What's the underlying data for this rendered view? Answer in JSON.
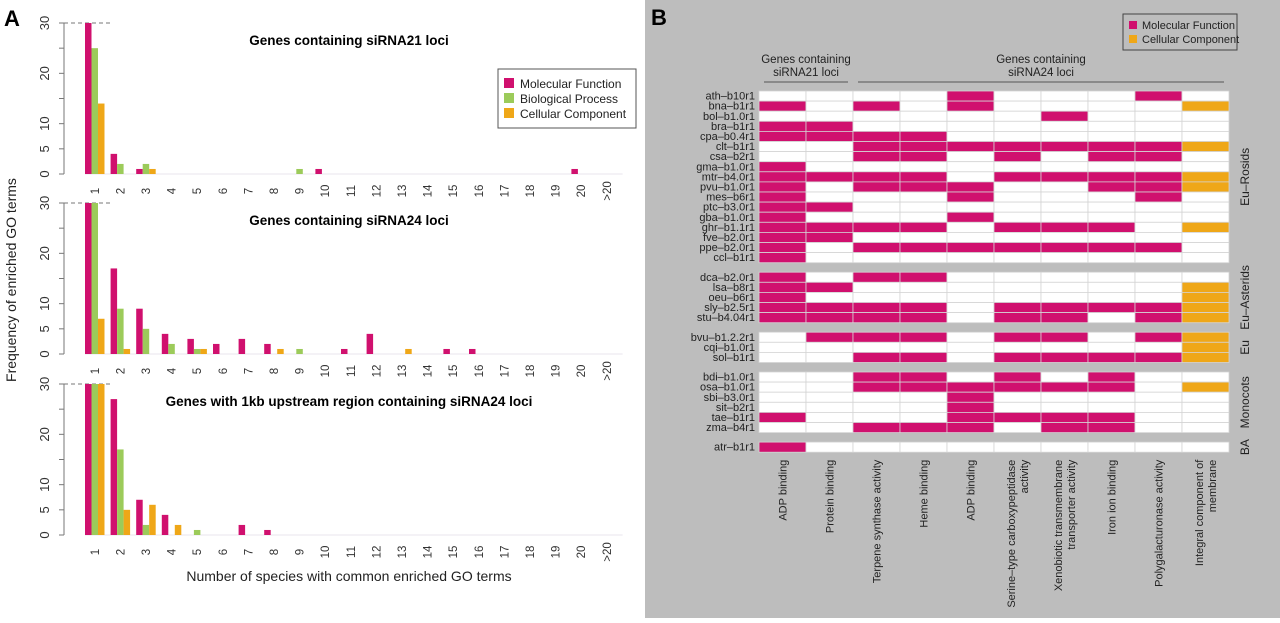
{
  "figure": {
    "panel_a_letter": "A",
    "panel_b_letter": "B"
  },
  "colors": {
    "molecular_function": "#d0106e",
    "biological_process": "#9ccb5a",
    "cellular_component": "#efa718",
    "heatmap_empty": "#ffffff",
    "panel_b_background": "#bdbdbd"
  },
  "chart_data": [
    {
      "type": "bar",
      "title": "Genes containing siRNA21 loci",
      "xlabel": "Number of species with common enriched GO terms",
      "ylabel": "Frequency of enriched GO terms",
      "ylim": [
        0,
        30
      ],
      "yticks": [
        "0",
        "5",
        "10",
        "20",
        "30"
      ],
      "grid": false,
      "reference_line": 30,
      "categories": [
        "1",
        "2",
        "3",
        "4",
        "5",
        "6",
        "7",
        "8",
        "9",
        "10",
        "11",
        "12",
        "13",
        "14",
        "15",
        "16",
        "17",
        "18",
        "19",
        "20",
        ">20"
      ],
      "legend": {
        "placement": "top-right",
        "entries": [
          "Molecular Function",
          "Biological Process",
          "Cellular Component"
        ]
      },
      "series": [
        {
          "name": "Molecular Function",
          "values": [
            30,
            4,
            1,
            0,
            0,
            0,
            0,
            0,
            0,
            1,
            0,
            0,
            0,
            0,
            0,
            0,
            0,
            0,
            0,
            1,
            0
          ]
        },
        {
          "name": "Biological Process",
          "values": [
            25,
            2,
            2,
            0,
            0,
            0,
            0,
            0,
            1,
            0,
            0,
            0,
            0,
            0,
            0,
            0,
            0,
            0,
            0,
            0,
            0
          ]
        },
        {
          "name": "Cellular Component",
          "values": [
            14,
            0,
            1,
            0,
            0,
            0,
            0,
            0,
            0,
            0,
            0,
            0,
            0,
            0,
            0,
            0,
            0,
            0,
            0,
            0,
            0
          ]
        }
      ]
    },
    {
      "type": "bar",
      "title": "Genes containing siRNA24 loci",
      "ylim": [
        0,
        30
      ],
      "yticks": [
        "0",
        "5",
        "10",
        "20",
        "30"
      ],
      "reference_line": 30,
      "categories": [
        "1",
        "2",
        "3",
        "4",
        "5",
        "6",
        "7",
        "8",
        "9",
        "10",
        "11",
        "12",
        "13",
        "14",
        "15",
        "16",
        "17",
        "18",
        "19",
        "20",
        ">20"
      ],
      "series": [
        {
          "name": "Molecular Function",
          "values": [
            30,
            17,
            9,
            4,
            3,
            2,
            3,
            2,
            0,
            0,
            1,
            4,
            0,
            0,
            1,
            1,
            0,
            0,
            0,
            0,
            0
          ]
        },
        {
          "name": "Biological Process",
          "values": [
            30,
            9,
            5,
            2,
            1,
            0,
            0,
            0,
            1,
            0,
            0,
            0,
            0,
            0,
            0,
            0,
            0,
            0,
            0,
            0,
            0
          ]
        },
        {
          "name": "Cellular Component",
          "values": [
            7,
            1,
            0,
            0,
            1,
            0,
            0,
            1,
            0,
            0,
            0,
            0,
            1,
            0,
            0,
            0,
            0,
            0,
            0,
            0,
            0
          ]
        }
      ]
    },
    {
      "type": "bar",
      "title": "Genes with 1kb upstream region containing siRNA24 loci",
      "ylim": [
        0,
        30
      ],
      "yticks": [
        "0",
        "5",
        "10",
        "20",
        "30"
      ],
      "reference_line": 30,
      "categories": [
        "1",
        "2",
        "3",
        "4",
        "5",
        "6",
        "7",
        "8",
        "9",
        "10",
        "11",
        "12",
        "13",
        "14",
        "15",
        "16",
        "17",
        "18",
        "19",
        "20",
        ">20"
      ],
      "series": [
        {
          "name": "Molecular Function",
          "values": [
            30,
            27,
            7,
            4,
            0,
            0,
            2,
            1,
            0,
            0,
            0,
            0,
            0,
            0,
            0,
            0,
            0,
            0,
            0,
            0,
            0
          ]
        },
        {
          "name": "Biological Process",
          "values": [
            30,
            17,
            2,
            0,
            1,
            0,
            0,
            0,
            0,
            0,
            0,
            0,
            0,
            0,
            0,
            0,
            0,
            0,
            0,
            0,
            0
          ]
        },
        {
          "name": "Cellular Component",
          "values": [
            30,
            5,
            6,
            2,
            0,
            0,
            0,
            0,
            0,
            0,
            0,
            0,
            0,
            0,
            0,
            0,
            0,
            0,
            0,
            0,
            0
          ]
        }
      ]
    },
    {
      "type": "heatmap",
      "legend": {
        "placement": "top-right",
        "entries": [
          "Molecular Function",
          "Cellular Component"
        ]
      },
      "column_groups": [
        {
          "label_lines": [
            "Genes containing",
            "siRNA21 loci"
          ],
          "columns": [
            0,
            1
          ]
        },
        {
          "label_lines": [
            "Genes containing",
            "siRNA24 loci"
          ],
          "columns": [
            2,
            9
          ]
        }
      ],
      "columns": [
        {
          "lines": [
            "ADP binding"
          ]
        },
        {
          "lines": [
            "Protein binding"
          ]
        },
        {
          "lines": [
            "Terpene synthase activity"
          ]
        },
        {
          "lines": [
            "Heme binding"
          ]
        },
        {
          "lines": [
            "ADP binding"
          ]
        },
        {
          "lines": [
            "Serine–type carboxypeptidase",
            "activity"
          ]
        },
        {
          "lines": [
            "Xenobiotic transmembrane",
            "transporter activity"
          ]
        },
        {
          "lines": [
            "Iron ion binding"
          ]
        },
        {
          "lines": [
            "Polygalacturonase activity"
          ]
        },
        {
          "lines": [
            "Integral component of",
            "membrane"
          ]
        }
      ],
      "value_legend": {
        "0": "none",
        "1": "Molecular Function",
        "2": "Cellular Component"
      },
      "groups": [
        {
          "name": "Eu–Rosids",
          "rows": [
            {
              "label": "ath–b10r1",
              "values": [
                0,
                0,
                0,
                0,
                1,
                0,
                0,
                0,
                1,
                0
              ]
            },
            {
              "label": "bna–b1r1",
              "values": [
                1,
                0,
                1,
                0,
                1,
                0,
                0,
                0,
                0,
                2
              ]
            },
            {
              "label": "bol–b1.0r1",
              "values": [
                0,
                0,
                0,
                0,
                0,
                0,
                1,
                0,
                0,
                0
              ]
            },
            {
              "label": "bra–b1r1",
              "values": [
                1,
                1,
                0,
                0,
                0,
                0,
                0,
                0,
                0,
                0
              ]
            },
            {
              "label": "cpa–b0.4r1",
              "values": [
                1,
                1,
                1,
                1,
                0,
                0,
                0,
                0,
                0,
                0
              ]
            },
            {
              "label": "clt–b1r1",
              "values": [
                0,
                0,
                1,
                1,
                1,
                1,
                1,
                1,
                1,
                2
              ]
            },
            {
              "label": "csa–b2r1",
              "values": [
                0,
                0,
                1,
                1,
                0,
                1,
                0,
                1,
                1,
                0
              ]
            },
            {
              "label": "gma–b1.0r1",
              "values": [
                1,
                0,
                0,
                0,
                0,
                0,
                0,
                0,
                0,
                0
              ]
            },
            {
              "label": "mtr–b4.0r1",
              "values": [
                1,
                1,
                1,
                1,
                0,
                1,
                1,
                1,
                1,
                2
              ]
            },
            {
              "label": "pvu–b1.0r1",
              "values": [
                1,
                0,
                1,
                1,
                1,
                0,
                0,
                1,
                1,
                2
              ]
            },
            {
              "label": "mes–b6r1",
              "values": [
                1,
                0,
                0,
                0,
                1,
                0,
                0,
                0,
                1,
                0
              ]
            },
            {
              "label": "ptc–b3.0r1",
              "values": [
                1,
                1,
                0,
                0,
                0,
                0,
                0,
                0,
                0,
                0
              ]
            },
            {
              "label": "gba–b1.0r1",
              "values": [
                1,
                0,
                0,
                0,
                1,
                0,
                0,
                0,
                0,
                0
              ]
            },
            {
              "label": "ghr–b1.1r1",
              "values": [
                1,
                1,
                1,
                1,
                0,
                1,
                1,
                1,
                0,
                2
              ]
            },
            {
              "label": "fve–b2.0r1",
              "values": [
                1,
                1,
                0,
                0,
                0,
                0,
                0,
                0,
                0,
                0
              ]
            },
            {
              "label": "ppe–b2.0r1",
              "values": [
                1,
                0,
                1,
                1,
                1,
                1,
                1,
                1,
                1,
                0
              ]
            },
            {
              "label": "ccl–b1r1",
              "values": [
                1,
                0,
                0,
                0,
                0,
                0,
                0,
                0,
                0,
                0
              ]
            }
          ]
        },
        {
          "name": "Eu–Asterids",
          "rows": [
            {
              "label": "dca–b2.0r1",
              "values": [
                1,
                0,
                1,
                1,
                0,
                0,
                0,
                0,
                0,
                0
              ]
            },
            {
              "label": "lsa–b8r1",
              "values": [
                1,
                1,
                0,
                0,
                0,
                0,
                0,
                0,
                0,
                2
              ]
            },
            {
              "label": "oeu–b6r1",
              "values": [
                1,
                0,
                0,
                0,
                0,
                0,
                0,
                0,
                0,
                2
              ]
            },
            {
              "label": "sly–b2.5r1",
              "values": [
                1,
                1,
                1,
                1,
                0,
                1,
                1,
                1,
                1,
                2
              ]
            },
            {
              "label": "stu–b4.04r1",
              "values": [
                1,
                1,
                1,
                1,
                0,
                1,
                1,
                0,
                1,
                2
              ]
            }
          ]
        },
        {
          "name": "Eu",
          "rows": [
            {
              "label": "bvu–b1.2.2r1",
              "values": [
                0,
                1,
                1,
                1,
                0,
                1,
                1,
                0,
                1,
                2
              ]
            },
            {
              "label": "cqi–b1.0r1",
              "values": [
                0,
                0,
                0,
                0,
                0,
                0,
                0,
                0,
                0,
                2
              ]
            },
            {
              "label": "sol–b1r1",
              "values": [
                0,
                0,
                1,
                1,
                0,
                1,
                1,
                1,
                1,
                2
              ]
            }
          ]
        },
        {
          "name": "Monocots",
          "rows": [
            {
              "label": "bdi–b1.0r1",
              "values": [
                0,
                0,
                1,
                1,
                0,
                1,
                0,
                1,
                0,
                0
              ]
            },
            {
              "label": "osa–b1.0r1",
              "values": [
                0,
                0,
                1,
                1,
                1,
                1,
                1,
                1,
                0,
                2
              ]
            },
            {
              "label": "sbi–b3.0r1",
              "values": [
                0,
                0,
                0,
                0,
                1,
                0,
                0,
                0,
                0,
                0
              ]
            },
            {
              "label": "sit–b2r1",
              "values": [
                0,
                0,
                0,
                0,
                1,
                0,
                0,
                0,
                0,
                0
              ]
            },
            {
              "label": "tae–b1r1",
              "values": [
                1,
                0,
                0,
                0,
                1,
                1,
                1,
                1,
                0,
                0
              ]
            },
            {
              "label": "zma–b4r1",
              "values": [
                0,
                0,
                1,
                1,
                1,
                0,
                1,
                1,
                0,
                0
              ]
            }
          ]
        },
        {
          "name": "BA",
          "rows": [
            {
              "label": "atr–b1r1",
              "values": [
                1,
                0,
                0,
                0,
                0,
                0,
                0,
                0,
                0,
                0
              ]
            }
          ]
        }
      ]
    }
  ]
}
